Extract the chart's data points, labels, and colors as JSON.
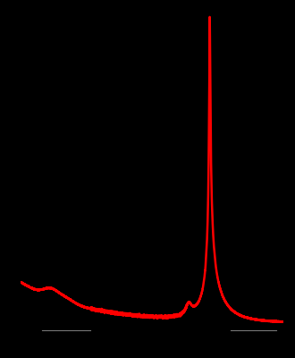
{
  "background_color": "#000000",
  "line_color": "#ff0000",
  "line_width": 1.8,
  "fig_width": 3.3,
  "fig_height": 4.0,
  "dpi": 100,
  "xlim": [
    0,
    1500
  ],
  "ylim": [
    -0.02,
    1.02
  ],
  "tick_color": "#777777",
  "tick_lw": 0.8
}
